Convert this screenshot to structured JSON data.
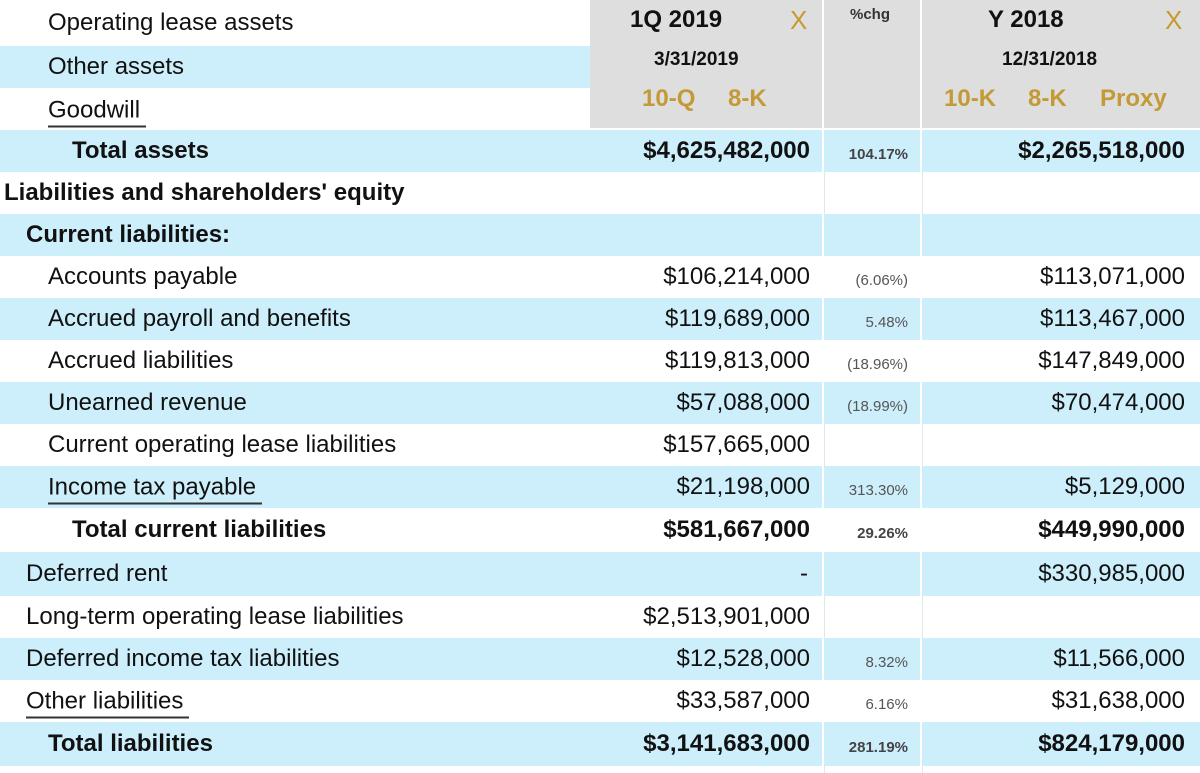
{
  "header": {
    "q_period": "1Q 2019",
    "q_date": "3/31/2019",
    "q_links": [
      "10-Q",
      "8-K"
    ],
    "chg_label": "%chg",
    "y_period": "Y 2018",
    "y_date": "12/31/2018",
    "y_links": [
      "10-K",
      "8-K",
      "Proxy"
    ],
    "remove_symbol": "X"
  },
  "top_rows": [
    {
      "label": "Operating lease assets"
    },
    {
      "label": "Other assets"
    },
    {
      "label": "Goodwill"
    }
  ],
  "rows": [
    {
      "label": "Total assets",
      "q": "$4,625,482,000",
      "chg": "104.17%",
      "y": "$2,265,518,000"
    },
    {
      "label": "Liabilities and shareholders' equity",
      "q": "",
      "chg": "",
      "y": ""
    },
    {
      "label": "Current liabilities:",
      "q": "",
      "chg": "",
      "y": ""
    },
    {
      "label": "Accounts payable",
      "q": "$106,214,000",
      "chg": "(6.06%)",
      "y": "$113,071,000"
    },
    {
      "label": "Accrued payroll and benefits",
      "q": "$119,689,000",
      "chg": "5.48%",
      "y": "$113,467,000"
    },
    {
      "label": "Accrued liabilities",
      "q": "$119,813,000",
      "chg": "(18.96%)",
      "y": "$147,849,000"
    },
    {
      "label": "Unearned revenue",
      "q": "$57,088,000",
      "chg": "(18.99%)",
      "y": "$70,474,000"
    },
    {
      "label": "Current operating lease liabilities",
      "q": "$157,665,000",
      "chg": "",
      "y": ""
    },
    {
      "label": "Income tax payable",
      "q": "$21,198,000",
      "chg": "313.30%",
      "y": "$5,129,000"
    },
    {
      "label": "Total current liabilities",
      "q": "$581,667,000",
      "chg": "29.26%",
      "y": "$449,990,000"
    },
    {
      "label": "Deferred rent",
      "q": "-",
      "chg": "",
      "y": "$330,985,000"
    },
    {
      "label": "Long-term operating lease liabilities",
      "q": "$2,513,901,000",
      "chg": "",
      "y": ""
    },
    {
      "label": "Deferred income tax liabilities",
      "q": "$12,528,000",
      "chg": "8.32%",
      "y": "$11,566,000"
    },
    {
      "label": "Other liabilities",
      "q": "$33,587,000",
      "chg": "6.16%",
      "y": "$31,638,000"
    },
    {
      "label": "Total liabilities",
      "q": "$3,141,683,000",
      "chg": "281.19%",
      "y": "$824,179,000"
    }
  ]
}
